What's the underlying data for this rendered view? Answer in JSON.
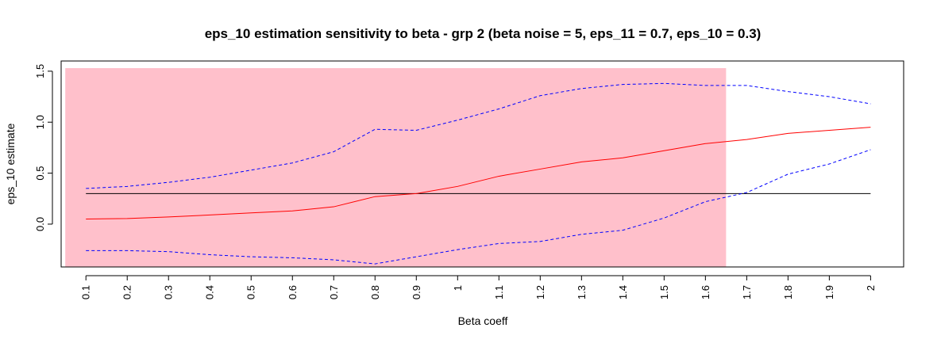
{
  "chart_data": {
    "type": "line",
    "title": "eps_10 estimation sensitivity to beta - grp 2 (beta noise = 5, eps_11 = 0.7, eps_10 = 0.3)",
    "xlabel": "Beta coeff",
    "ylabel": "eps_10 estimate",
    "x": [
      0.1,
      0.2,
      0.3,
      0.4,
      0.5,
      0.6,
      0.7,
      0.8,
      0.9,
      1.0,
      1.1,
      1.2,
      1.3,
      1.4,
      1.5,
      1.6,
      1.7,
      1.8,
      1.9,
      2.0
    ],
    "x_tick_labels": [
      "0.1",
      "0.2",
      "0.3",
      "0.4",
      "0.5",
      "0.6",
      "0.7",
      "0.8",
      "0.9",
      "1",
      "1.1",
      "1.2",
      "1.3",
      "1.4",
      "1.5",
      "1.6",
      "1.7",
      "1.8",
      "1.9",
      "2"
    ],
    "y_ticks": [
      0.0,
      0.5,
      1.0,
      1.5
    ],
    "y_tick_labels": [
      "0.0",
      "0.5",
      "1.0",
      "1.5"
    ],
    "xlim": [
      0.04,
      2.08
    ],
    "ylim": [
      -0.42,
      1.6
    ],
    "shaded_region": {
      "x": [
        0.05,
        1.65
      ],
      "y": [
        -0.42,
        1.53
      ],
      "color": "#ffc0cb"
    },
    "reference_line": {
      "y": 0.3,
      "x": [
        0.1,
        2.0
      ],
      "color": "#000000"
    },
    "series": [
      {
        "style": "solid",
        "color": "#ff0000",
        "values": [
          0.05,
          0.055,
          0.07,
          0.09,
          0.11,
          0.13,
          0.17,
          0.27,
          0.3,
          0.37,
          0.47,
          0.54,
          0.61,
          0.65,
          0.72,
          0.79,
          0.83,
          0.89,
          0.92,
          0.95
        ]
      },
      {
        "style": "dashed",
        "color": "#0000ff",
        "values": [
          0.35,
          0.37,
          0.41,
          0.46,
          0.53,
          0.6,
          0.71,
          0.93,
          0.92,
          1.02,
          1.13,
          1.26,
          1.33,
          1.37,
          1.38,
          1.36,
          1.36,
          1.3,
          1.25,
          1.18
        ]
      },
      {
        "style": "dashed",
        "color": "#0000ff",
        "values": [
          -0.26,
          -0.26,
          -0.27,
          -0.3,
          -0.32,
          -0.33,
          -0.35,
          -0.39,
          -0.32,
          -0.25,
          -0.19,
          -0.17,
          -0.1,
          -0.06,
          0.06,
          0.22,
          0.31,
          0.49,
          0.59,
          0.73
        ]
      }
    ]
  }
}
